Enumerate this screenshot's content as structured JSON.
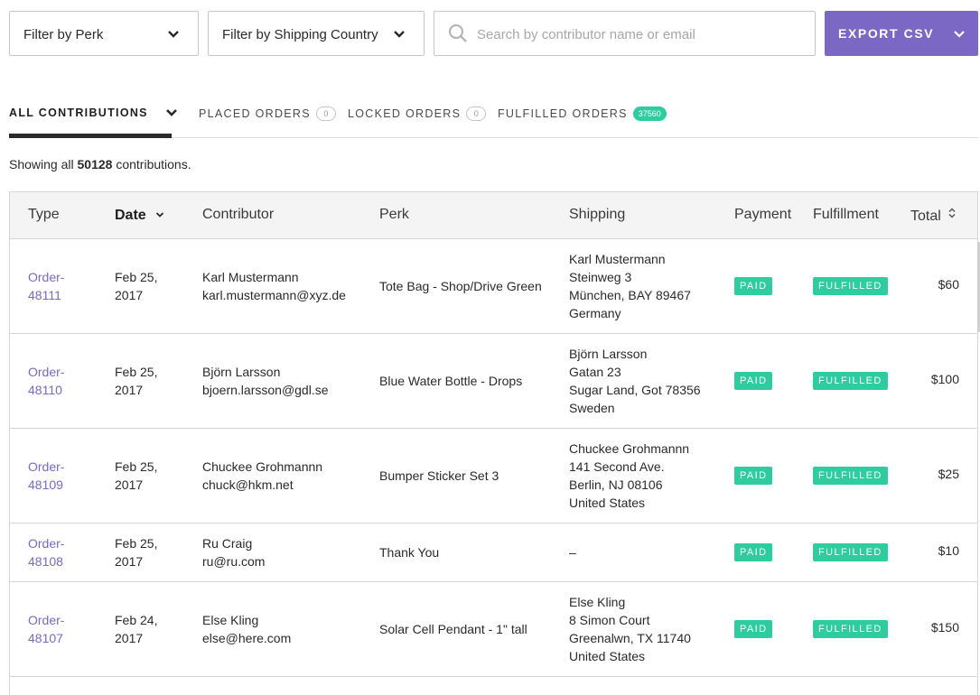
{
  "filters": {
    "perk_label": "Filter by Perk",
    "country_label": "Filter by Shipping Country",
    "search_placeholder": "Search by contributor name or email",
    "search_value": "",
    "export_label": "EXPORT CSV"
  },
  "tabs": [
    {
      "label": "ALL CONTRIBUTIONS",
      "count": null
    },
    {
      "label": "PLACED ORDERS",
      "count": "0"
    },
    {
      "label": "LOCKED ORDERS",
      "count": "0"
    },
    {
      "label": "FULFILLED ORDERS",
      "count": "37560"
    }
  ],
  "summary": {
    "prefix": "Showing all",
    "count": "50128",
    "suffix": "contributions."
  },
  "columns": [
    "Type",
    "Date",
    "Contributor",
    "Perk",
    "Shipping",
    "Payment",
    "Fulfillment",
    "Total"
  ],
  "rows": [
    {
      "order_line1": "Order-",
      "order_line2": "48111",
      "date_line1": "Feb 25,",
      "date_line2": "2017",
      "name": "Karl Mustermann",
      "email": "karl.mustermann@xyz.de",
      "perk": "Tote Bag - Shop/Drive Green",
      "shipping": [
        "Karl Mustermann",
        "Steinweg 3",
        "München, BAY 89467",
        "Germany"
      ],
      "payment": "PAID",
      "fulfillment": "FULFILLED",
      "total": "$60"
    },
    {
      "order_line1": "Order-",
      "order_line2": "48110",
      "date_line1": "Feb 25,",
      "date_line2": "2017",
      "name": "Björn Larsson",
      "email": "bjoern.larsson@gdl.se",
      "perk": "Blue Water Bottle - Drops",
      "shipping": [
        "Björn Larsson",
        "Gatan 23",
        "Sugar Land, Got 78356",
        "Sweden"
      ],
      "payment": "PAID",
      "fulfillment": "FULFILLED",
      "total": "$100"
    },
    {
      "order_line1": "Order-",
      "order_line2": "48109",
      "date_line1": "Feb 25,",
      "date_line2": "2017",
      "name": "Chuckee Grohmannn",
      "email": "chuck@hkm.net",
      "perk": "Bumper Sticker Set 3",
      "shipping": [
        "Chuckee Grohmannn",
        "141 Second Ave.",
        "Berlin, NJ 08106",
        "United States"
      ],
      "payment": "PAID",
      "fulfillment": "FULFILLED",
      "total": "$25"
    },
    {
      "order_line1": "Order-",
      "order_line2": "48108",
      "date_line1": "Feb 25,",
      "date_line2": "2017",
      "name": "Ru Craig",
      "email": "ru@ru.com",
      "perk": "Thank You",
      "shipping": [
        "–"
      ],
      "payment": "PAID",
      "fulfillment": "FULFILLED",
      "total": "$10"
    },
    {
      "order_line1": "Order-",
      "order_line2": "48107",
      "date_line1": "Feb 24,",
      "date_line2": "2017",
      "name": "Else Kling",
      "email": "else@here.com",
      "perk": "Solar Cell Pendant - 1\" tall",
      "shipping": [
        "Else Kling",
        "8 Simon Court",
        "Greenalwn, TX 11740",
        "United States"
      ],
      "payment": "PAID",
      "fulfillment": "FULFILLED",
      "total": "$150"
    }
  ],
  "colors": {
    "accent": "#7a68c4",
    "badge": "#2ecc9e"
  }
}
